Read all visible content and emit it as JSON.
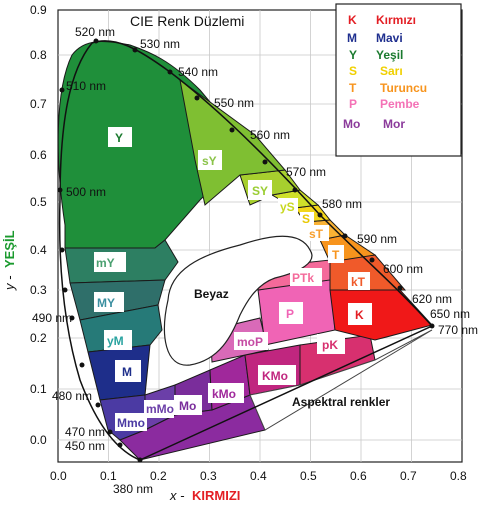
{
  "title": "CIE Renk Düzlemi",
  "axes": {
    "x_ticks": [
      "0.0",
      "0.1",
      "0.2",
      "0.3",
      "0.4",
      "0.5",
      "0.6",
      "0.7",
      "0.8"
    ],
    "y_ticks": [
      "0.0",
      "0.1",
      "0.2",
      "0.3",
      "0.4",
      "0.5",
      "0.6",
      "0.7",
      "0.8",
      "0.9"
    ],
    "x_label_var": "x -",
    "x_label_name": "KIRMIZI",
    "y_label_var": "y -",
    "y_label_name": "YEŞİL"
  },
  "wavelengths": {
    "w380": "380 nm",
    "w450": "450 nm",
    "w470": "470 nm",
    "w480": "480 nm",
    "w490": "490 nm",
    "w500": "500 nm",
    "w510": "510 nm",
    "w520": "520 nm",
    "w530": "530 nm",
    "w540": "540 nm",
    "w550": "550 nm",
    "w560": "560 nm",
    "w570": "570 nm",
    "w580": "580 nm",
    "w590": "590 nm",
    "w600": "600 nm",
    "w620": "620 nm",
    "w650": "650 nm",
    "w770": "770 nm"
  },
  "regions": {
    "Y": "Y",
    "sY": "sY",
    "SY": "SY",
    "yS": "yS",
    "S": "S",
    "sT": "sT",
    "T": "T",
    "kT": "kT",
    "K": "K",
    "PTk": "PTk",
    "P": "P",
    "moP": "moP",
    "pK": "pK",
    "KMo": "KMo",
    "kMo": "kMo",
    "Mo": "Mo",
    "mMo": "mMo",
    "Mmo": "Mmo",
    "M": "M",
    "yM": "yM",
    "MY": "MY",
    "mY": "mY",
    "white": "Beyaz",
    "spectral": "Aspektral renkler"
  },
  "legend": [
    {
      "code": "K",
      "name": "Kırmızı",
      "color": "#e31e24"
    },
    {
      "code": "M",
      "name": "Mavi",
      "color": "#1f2f8f"
    },
    {
      "code": "Y",
      "name": "Yeşil",
      "color": "#1a7a2e"
    },
    {
      "code": "S",
      "name": "Sarı",
      "color": "#f0d000"
    },
    {
      "code": "T",
      "name": "Turuncu",
      "color": "#f7941d"
    },
    {
      "code": "P",
      "name": "Pembe",
      "color": "#f472b6"
    },
    {
      "code": "Mo",
      "name": "Mor",
      "color": "#8b3a9b"
    }
  ]
}
